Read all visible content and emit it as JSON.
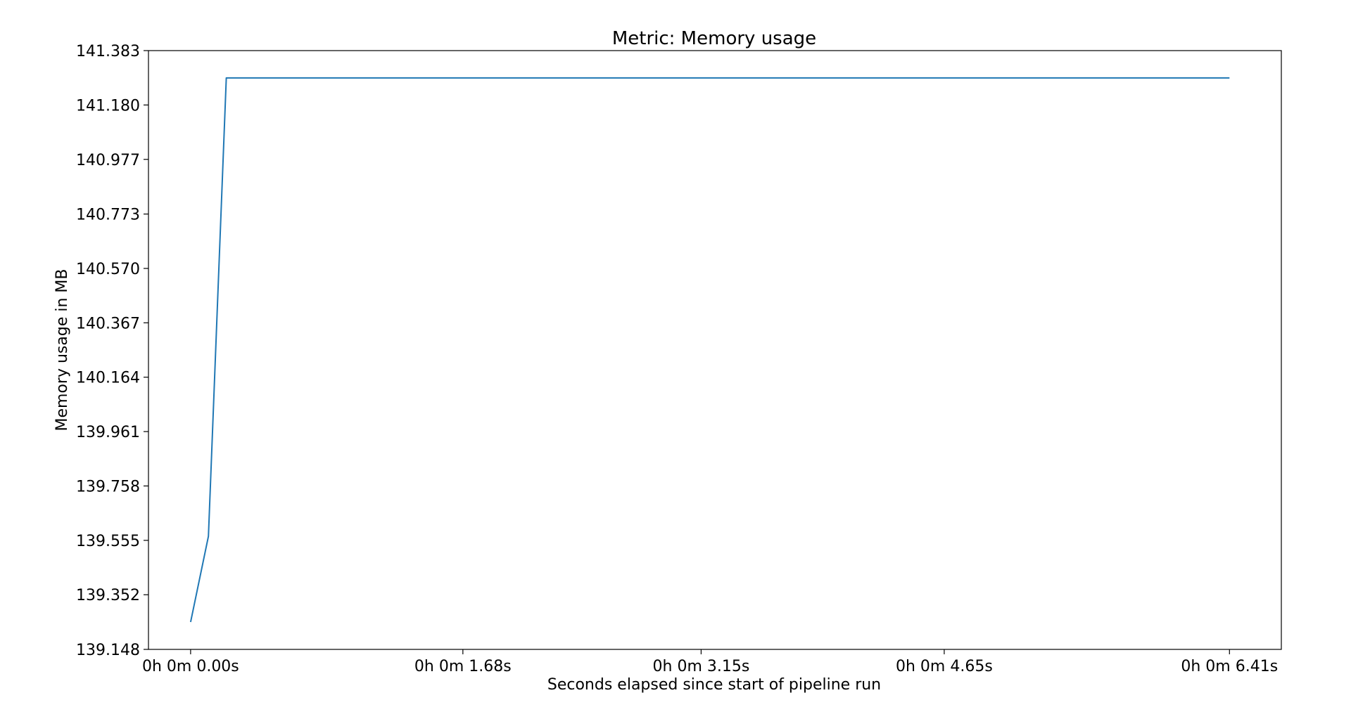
{
  "chart_data": {
    "type": "line",
    "title": "Metric: Memory usage",
    "xlabel": "Seconds elapsed since start of pipeline run",
    "ylabel": "Memory usage in MB",
    "xlim": [
      -0.26,
      6.73
    ],
    "ylim": [
      139.148,
      141.383
    ],
    "x_ticks": [
      {
        "value": 0.0,
        "label": "0h 0m 0.00s"
      },
      {
        "value": 1.68,
        "label": "0h 0m 1.68s"
      },
      {
        "value": 3.15,
        "label": "0h 0m 3.15s"
      },
      {
        "value": 4.65,
        "label": "0h 0m 4.65s"
      },
      {
        "value": 6.41,
        "label": "0h 0m 6.41s"
      }
    ],
    "y_ticks": [
      {
        "value": 139.148,
        "label": "139.148"
      },
      {
        "value": 139.352,
        "label": "139.352"
      },
      {
        "value": 139.555,
        "label": "139.555"
      },
      {
        "value": 139.758,
        "label": "139.758"
      },
      {
        "value": 139.961,
        "label": "139.961"
      },
      {
        "value": 140.164,
        "label": "140.164"
      },
      {
        "value": 140.367,
        "label": "140.367"
      },
      {
        "value": 140.57,
        "label": "140.570"
      },
      {
        "value": 140.773,
        "label": "140.773"
      },
      {
        "value": 140.977,
        "label": "140.977"
      },
      {
        "value": 141.18,
        "label": "141.180"
      },
      {
        "value": 141.383,
        "label": "141.383"
      }
    ],
    "grid": false,
    "series": [
      {
        "color": "#1f77b4",
        "x": [
          0.0,
          0.11,
          0.22,
          6.41
        ],
        "y": [
          139.25,
          139.57,
          141.281,
          141.281
        ]
      }
    ]
  }
}
